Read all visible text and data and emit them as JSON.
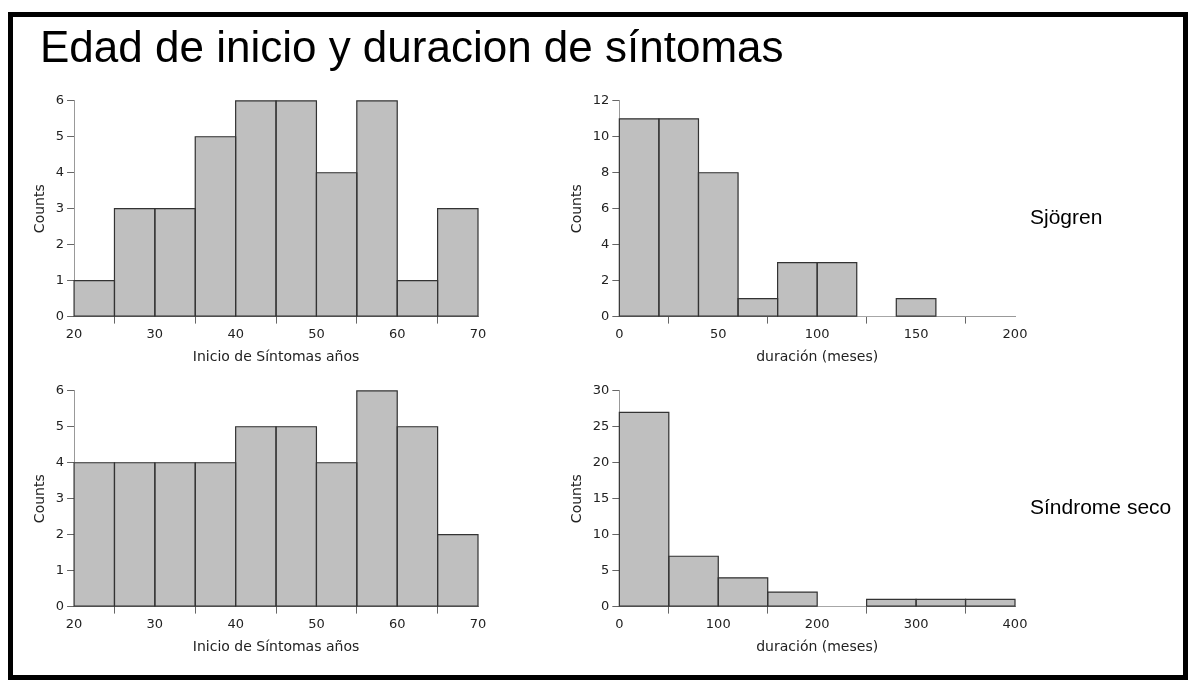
{
  "chart_data": [
    {
      "type": "histogram",
      "title": "Edad de inicio y duracion de síntomas",
      "xlabel": "Inicio de Síntomas años",
      "ylabel": "Counts",
      "bins": [
        20,
        25,
        30,
        35,
        40,
        45,
        50,
        55,
        60,
        65,
        70
      ],
      "values": [
        1,
        3,
        3,
        5,
        6,
        6,
        4,
        6,
        1,
        3
      ],
      "color": "#bfbfbf",
      "xlim": [
        20,
        70
      ],
      "xticks": [
        20,
        30,
        40,
        50,
        60,
        70
      ],
      "ylim": [
        0,
        6
      ],
      "yticks": [
        0,
        1,
        2,
        3,
        4,
        5,
        6
      ]
    },
    {
      "type": "histogram",
      "xlabel": "duración (meses)",
      "ylabel": "Counts",
      "annotations": [
        "Sjögren"
      ],
      "bins": [
        0,
        20,
        40,
        60,
        80,
        100,
        120,
        140,
        160
      ],
      "values": [
        11,
        11,
        8,
        1,
        3,
        3,
        0,
        1
      ],
      "color": "#bfbfbf",
      "xlim": [
        0,
        200
      ],
      "xticks": [
        0,
        50,
        100,
        150,
        200
      ],
      "ylim": [
        0,
        12
      ],
      "yticks": [
        0,
        2,
        4,
        6,
        8,
        10,
        12
      ]
    },
    {
      "type": "histogram",
      "xlabel": "Inicio de Síntomas años",
      "ylabel": "Counts",
      "bins": [
        20,
        25,
        30,
        35,
        40,
        45,
        50,
        55,
        60,
        65,
        70
      ],
      "values": [
        4,
        4,
        4,
        4,
        5,
        5,
        4,
        6,
        5,
        2
      ],
      "color": "#bfbfbf",
      "xlim": [
        20,
        70
      ],
      "xticks": [
        20,
        30,
        40,
        50,
        60,
        70
      ],
      "ylim": [
        0,
        6
      ],
      "yticks": [
        0,
        1,
        2,
        3,
        4,
        5,
        6
      ]
    },
    {
      "type": "histogram",
      "xlabel": "duración (meses)",
      "ylabel": "Counts",
      "annotations": [
        "Síndrome seco"
      ],
      "bins": [
        0,
        50,
        100,
        150,
        200,
        250,
        300,
        350,
        400
      ],
      "values": [
        27,
        7,
        4,
        2,
        0,
        1,
        1,
        1
      ],
      "color": "#bfbfbf",
      "xlim": [
        0,
        400
      ],
      "xticks": [
        0,
        100,
        200,
        300,
        400
      ],
      "ylim": [
        0,
        30
      ],
      "yticks": [
        0,
        5,
        10,
        15,
        20,
        25,
        30
      ]
    }
  ]
}
